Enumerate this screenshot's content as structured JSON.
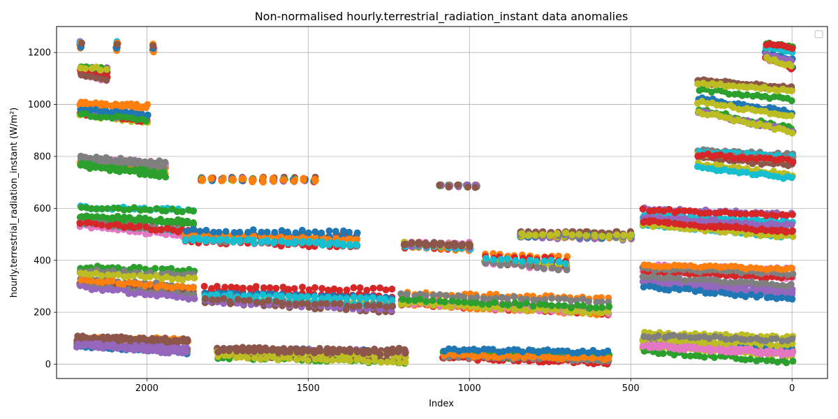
{
  "chart_data": {
    "type": "scatter",
    "title": "Non-normalised hourly.terrestrial_radiation_instant data anomalies",
    "xlabel": "Index",
    "ylabel": "hourly.terrestrial_radiation_instant (W/m²)",
    "xlim": [
      2280,
      -110
    ],
    "ylim": [
      -55,
      1300
    ],
    "x_inverted": true,
    "x_ticks": [
      2000,
      1500,
      1000,
      500,
      0
    ],
    "y_ticks": [
      0,
      200,
      400,
      600,
      800,
      1000,
      1200
    ],
    "grid": true,
    "legend": "top-right, empty",
    "colors": [
      "#1f77b4",
      "#ff7f0e",
      "#2ca02c",
      "#d62728",
      "#9467bd",
      "#8c564b",
      "#e377c2",
      "#7f7f7f",
      "#bcbd22",
      "#17becf"
    ],
    "clusters": [
      {
        "x0": 2205,
        "x1": 1980,
        "y0": 1245,
        "y1": 1200,
        "n": 3
      },
      {
        "x0": 2205,
        "x1": 2125,
        "y0": 1145,
        "y1": 1095,
        "n": 6
      },
      {
        "x0": 2205,
        "x1": 2000,
        "y0": 1010,
        "y1": 930,
        "n": 14
      },
      {
        "x0": 2205,
        "x1": 1945,
        "y0": 830,
        "y1": 720,
        "n": 18
      },
      {
        "x0": 2205,
        "x1": 1855,
        "y0": 610,
        "y1": 480,
        "n": 22
      },
      {
        "x0": 2205,
        "x1": 1855,
        "y0": 380,
        "y1": 250,
        "n": 22
      },
      {
        "x0": 2215,
        "x1": 1875,
        "y0": 115,
        "y1": 10,
        "n": 26
      },
      {
        "x0": 1830,
        "x1": 1480,
        "y0": 720,
        "y1": 700,
        "n": 12
      },
      {
        "x0": 1880,
        "x1": 1350,
        "y0": 520,
        "y1": 450,
        "n": 26
      },
      {
        "x0": 1820,
        "x1": 1240,
        "y0": 300,
        "y1": 200,
        "n": 30
      },
      {
        "x0": 1780,
        "x1": 1200,
        "y0": 65,
        "y1": 5,
        "n": 32
      },
      {
        "x0": 1200,
        "x1": 1000,
        "y0": 470,
        "y1": 440,
        "n": 10
      },
      {
        "x0": 1090,
        "x1": 980,
        "y0": 690,
        "y1": 680,
        "n": 5
      },
      {
        "x0": 1210,
        "x1": 570,
        "y0": 300,
        "y1": 170,
        "n": 34
      },
      {
        "x0": 1080,
        "x1": 570,
        "y0": 60,
        "y1": 5,
        "n": 34
      },
      {
        "x0": 840,
        "x1": 500,
        "y0": 510,
        "y1": 480,
        "n": 16
      },
      {
        "x0": 950,
        "x1": 700,
        "y0": 430,
        "y1": 360,
        "n": 12
      },
      {
        "x0": 460,
        "x1": 0,
        "y0": 620,
        "y1": 480,
        "n": 30
      },
      {
        "x0": 460,
        "x1": 0,
        "y0": 385,
        "y1": 220,
        "n": 30
      },
      {
        "x0": 460,
        "x1": 0,
        "y0": 130,
        "y1": 5,
        "n": 30
      },
      {
        "x0": 290,
        "x1": 0,
        "y0": 840,
        "y1": 710,
        "n": 22
      },
      {
        "x0": 290,
        "x1": 0,
        "y0": 1110,
        "y1": 880,
        "n": 22
      },
      {
        "x0": 80,
        "x1": 0,
        "y0": 1240,
        "y1": 1130,
        "n": 8
      }
    ]
  }
}
